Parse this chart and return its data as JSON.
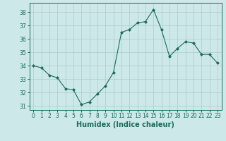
{
  "x": [
    0,
    1,
    2,
    3,
    4,
    5,
    6,
    7,
    8,
    9,
    10,
    11,
    12,
    13,
    14,
    15,
    16,
    17,
    18,
    19,
    20,
    21,
    22,
    23
  ],
  "y": [
    34.0,
    33.85,
    33.3,
    33.1,
    32.3,
    32.2,
    31.1,
    31.3,
    31.9,
    32.5,
    33.5,
    36.5,
    36.7,
    37.2,
    37.3,
    38.2,
    36.7,
    34.7,
    35.3,
    35.8,
    35.7,
    34.85,
    34.85,
    34.2
  ],
  "xlabel": "Humidex (Indice chaleur)",
  "xlim": [
    -0.5,
    23.5
  ],
  "ylim": [
    30.7,
    38.7
  ],
  "yticks": [
    31,
    32,
    33,
    34,
    35,
    36,
    37,
    38
  ],
  "xticks": [
    0,
    1,
    2,
    3,
    4,
    5,
    6,
    7,
    8,
    9,
    10,
    11,
    12,
    13,
    14,
    15,
    16,
    17,
    18,
    19,
    20,
    21,
    22,
    23
  ],
  "line_color": "#1a6b5a",
  "marker_color": "#1a6b5a",
  "bg_color": "#cce8e8",
  "grid_color": "#aacccc",
  "axis_color": "#1a6b5a",
  "tick_label_fontsize": 5.5,
  "xlabel_fontsize": 7.0
}
